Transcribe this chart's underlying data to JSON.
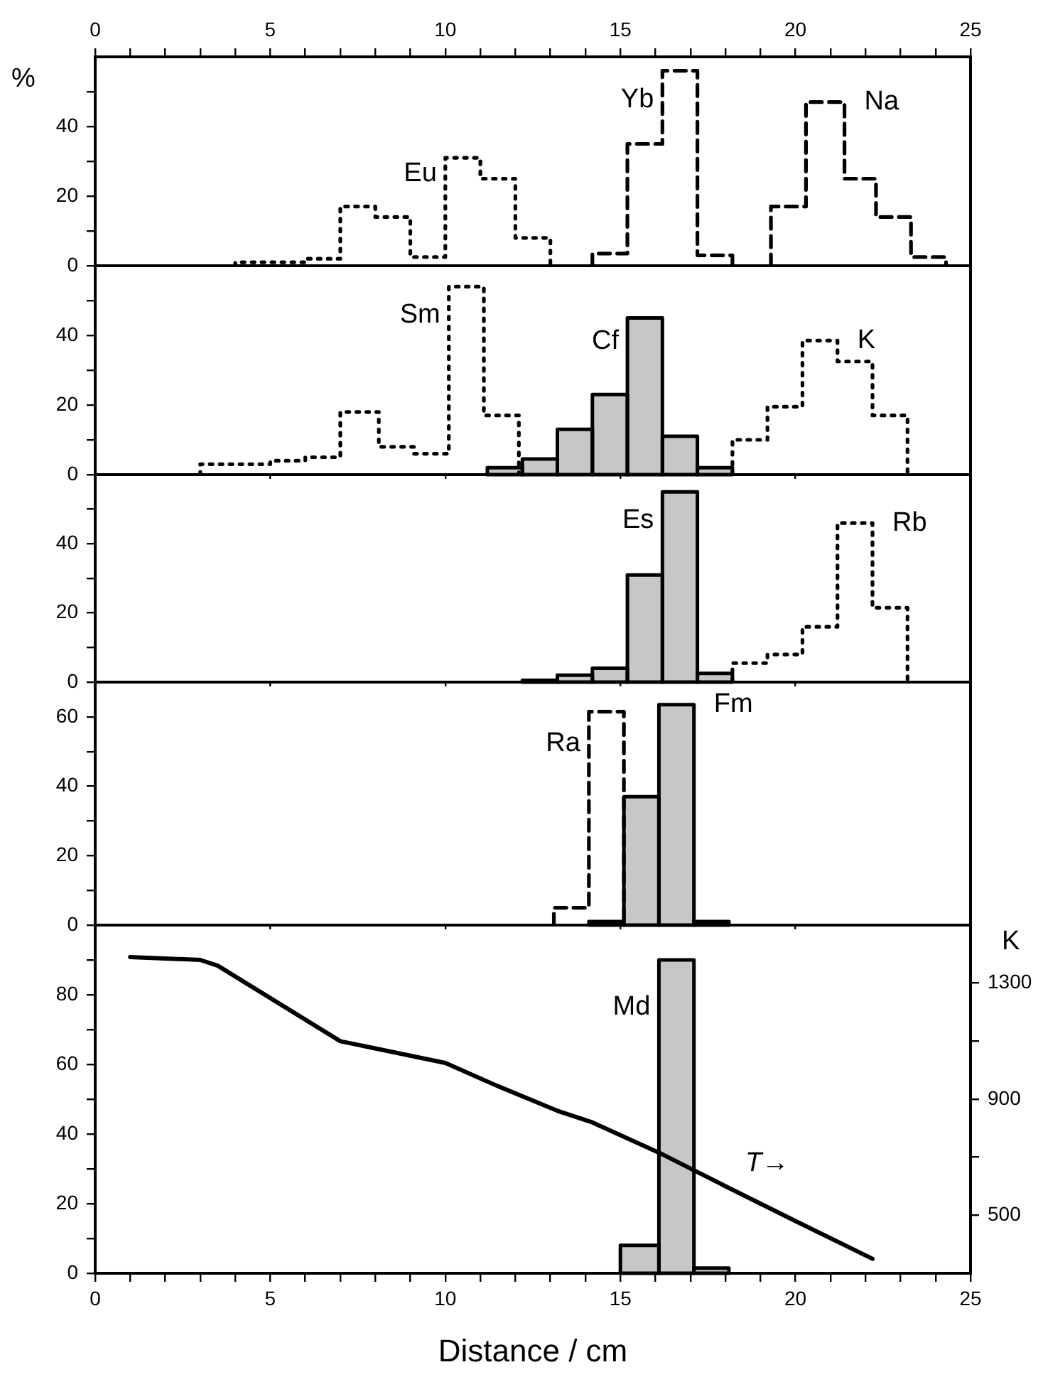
{
  "chart_data": [
    {
      "type": "step",
      "ylabel": "%",
      "xlim": [
        0,
        25
      ],
      "xticks": [
        0,
        {
          "value": 1,
          "label": null
        },
        {
          "value": 2,
          "label": null
        },
        {
          "value": 3,
          "label": null
        },
        {
          "value": 4,
          "label": null
        },
        5,
        {
          "value": 6,
          "label": null
        },
        {
          "value": 7,
          "label": null
        },
        {
          "value": 8,
          "label": null
        },
        {
          "value": 9,
          "label": null
        },
        10,
        {
          "value": 11,
          "label": null
        },
        {
          "value": 12,
          "label": null
        },
        {
          "value": 13,
          "label": null
        },
        {
          "value": 14,
          "label": null
        },
        15,
        {
          "value": 16,
          "label": null
        },
        {
          "value": 17,
          "label": null
        },
        {
          "value": 18,
          "label": null
        },
        {
          "value": 19,
          "label": null
        },
        20,
        {
          "value": 21,
          "label": null
        },
        {
          "value": 22,
          "label": null
        },
        {
          "value": 23,
          "label": null
        },
        {
          "value": 24,
          "label": null
        },
        25
      ],
      "ylim": [
        0,
        60
      ],
      "yticks": [
        0,
        {
          "value": 10,
          "label": null
        },
        20,
        {
          "value": 30,
          "label": null
        },
        40,
        {
          "value": 50,
          "label": null
        }
      ],
      "series": [
        {
          "name": "Eu",
          "type": "step",
          "line_style": "dotted",
          "color": "#000000",
          "x": [
            4,
            4,
            5,
            6,
            7,
            8,
            9,
            10,
            11,
            12,
            13
          ],
          "values": [
            0,
            1,
            1,
            2,
            17,
            14,
            2.5,
            31,
            25,
            8,
            0
          ]
        },
        {
          "name": "Yb",
          "type": "step",
          "line_style": "dashed",
          "color": "#000000",
          "x": [
            14.2,
            14.2,
            15.2,
            16.2,
            17.2,
            18.2
          ],
          "values": [
            0,
            3.5,
            35,
            56,
            3,
            0
          ]
        },
        {
          "name": "Na",
          "type": "step",
          "line_style": "dashed",
          "color": "#000000",
          "x": [
            19.3,
            19.3,
            20.3,
            21.4,
            22.3,
            23.3,
            24.3
          ],
          "values": [
            0,
            17,
            47,
            25,
            14,
            2.5,
            0
          ]
        }
      ]
    },
    {
      "type": "step",
      "xlim": [
        0,
        25
      ],
      "xticks": [
        0,
        5,
        10,
        15,
        20,
        25
      ],
      "ylim": [
        0,
        60
      ],
      "yticks": [
        0,
        {
          "value": 10,
          "label": null
        },
        20,
        {
          "value": 30,
          "label": null
        },
        40,
        {
          "value": 50,
          "label": null
        }
      ],
      "tick_labels": "y",
      "series": [
        {
          "name": "Sm",
          "type": "step",
          "line_style": "dotted",
          "color": "#000000",
          "x": [
            3,
            3,
            4,
            5,
            6,
            7,
            8.1,
            9.1,
            10.1,
            11.1,
            12.1
          ],
          "values": [
            0,
            3,
            3,
            4,
            5,
            18,
            8,
            6,
            54,
            17,
            0
          ]
        },
        {
          "name": "Cf",
          "type": "histogram",
          "line_style": "solid",
          "color": "#000000",
          "bins": [
            11.2,
            12.2,
            13.2,
            14.2,
            15.2,
            16.2,
            17.2,
            18.2
          ],
          "values": [
            2,
            4.5,
            13,
            23,
            45,
            11,
            2
          ]
        },
        {
          "name": "K",
          "type": "step",
          "line_style": "dotted",
          "color": "#000000",
          "x": [
            18.2,
            18.2,
            19.2,
            20.2,
            21.2,
            22.2,
            23.2
          ],
          "values": [
            0,
            10,
            19.5,
            38.5,
            32.5,
            17,
            0
          ]
        }
      ]
    },
    {
      "type": "step",
      "xlim": [
        0,
        25
      ],
      "xticks": [
        0,
        5,
        10,
        15,
        20,
        25
      ],
      "ylim": [
        0,
        60
      ],
      "yticks": [
        0,
        {
          "value": 10,
          "label": null
        },
        20,
        {
          "value": 30,
          "label": null
        },
        40,
        {
          "value": 50,
          "label": null
        }
      ],
      "tick_labels": "y",
      "series": [
        {
          "name": "Es",
          "type": "histogram",
          "line_style": "solid",
          "color": "#000000",
          "bins": [
            12.2,
            13.2,
            14.2,
            15.2,
            16.2,
            17.2,
            18.2
          ],
          "values": [
            0.5,
            2,
            4,
            31,
            55,
            2.5
          ]
        },
        {
          "name": "Rb",
          "type": "step",
          "line_style": "dotted",
          "color": "#000000",
          "x": [
            18.2,
            18.2,
            19.2,
            20.2,
            21.2,
            22.2,
            23.2
          ],
          "values": [
            0,
            5.5,
            8,
            16,
            46,
            21.5,
            0
          ]
        }
      ]
    },
    {
      "type": "step",
      "xlim": [
        0,
        25
      ],
      "xticks": [
        0,
        5,
        10,
        15,
        20,
        25
      ],
      "ylim": [
        0,
        70
      ],
      "yticks": [
        0,
        {
          "value": 10,
          "label": null
        },
        20,
        {
          "value": 30,
          "label": null
        },
        40,
        {
          "value": 50,
          "label": null
        },
        60
      ],
      "tick_labels": "y",
      "series": [
        {
          "name": "Ra",
          "type": "step",
          "line_style": "dashed",
          "color": "#000000",
          "x": [
            13.1,
            13.1,
            14.1,
            15.1
          ],
          "values": [
            0,
            5,
            61.5,
            0
          ]
        },
        {
          "name": "Fm",
          "type": "histogram",
          "line_style": "solid",
          "color": "#000000",
          "bins": [
            14.1,
            15.1,
            16.1,
            17.1,
            18.1
          ],
          "values": [
            1,
            37,
            63.5,
            1
          ]
        }
      ]
    },
    {
      "type": "histogram",
      "xlabel": "Distance / cm",
      "y2label": "K",
      "xlim": [
        0,
        25
      ],
      "xticks": [
        0,
        {
          "value": 1,
          "label": null
        },
        {
          "value": 2,
          "label": null
        },
        {
          "value": 3,
          "label": null
        },
        {
          "value": 4,
          "label": null
        },
        5,
        {
          "value": 6,
          "label": null
        },
        {
          "value": 7,
          "label": null
        },
        {
          "value": 8,
          "label": null
        },
        {
          "value": 9,
          "label": null
        },
        10,
        {
          "value": 11,
          "label": null
        },
        {
          "value": 12,
          "label": null
        },
        {
          "value": 13,
          "label": null
        },
        {
          "value": 14,
          "label": null
        },
        15,
        {
          "value": 16,
          "label": null
        },
        {
          "value": 17,
          "label": null
        },
        {
          "value": 18,
          "label": null
        },
        {
          "value": 19,
          "label": null
        },
        20,
        {
          "value": 21,
          "label": null
        },
        {
          "value": 22,
          "label": null
        },
        {
          "value": 23,
          "label": null
        },
        {
          "value": 24,
          "label": null
        },
        25
      ],
      "ylim": [
        0,
        100
      ],
      "yticks": [
        0,
        {
          "value": 10,
          "label": null
        },
        20,
        {
          "value": 30,
          "label": null
        },
        40,
        {
          "value": 50,
          "label": null
        },
        60,
        {
          "value": 70,
          "label": null
        },
        80,
        {
          "value": 90,
          "label": null
        }
      ],
      "y2lim": [
        300,
        1500
      ],
      "y2ticks": [
        500,
        {
          "value": 700,
          "label": null
        },
        900,
        {
          "value": 1100,
          "label": null
        },
        1300
      ],
      "series": [
        {
          "name": "Md",
          "type": "histogram",
          "line_style": "solid",
          "color": "#000000",
          "bins": [
            15,
            16.1,
            17.1,
            18.1
          ],
          "values": [
            8,
            90,
            1.5
          ]
        },
        {
          "name": "T→",
          "type": "line",
          "axis": "y2",
          "line_style": "solid",
          "color": "#000000",
          "x": [
            1,
            3,
            3.5,
            7,
            10,
            11.5,
            13.2,
            14.2,
            16.2,
            18,
            20,
            22.2
          ],
          "values": [
            1390,
            1380,
            1360,
            1100,
            1025,
            945,
            860,
            820,
            710,
            600,
            480,
            350
          ]
        }
      ]
    }
  ]
}
